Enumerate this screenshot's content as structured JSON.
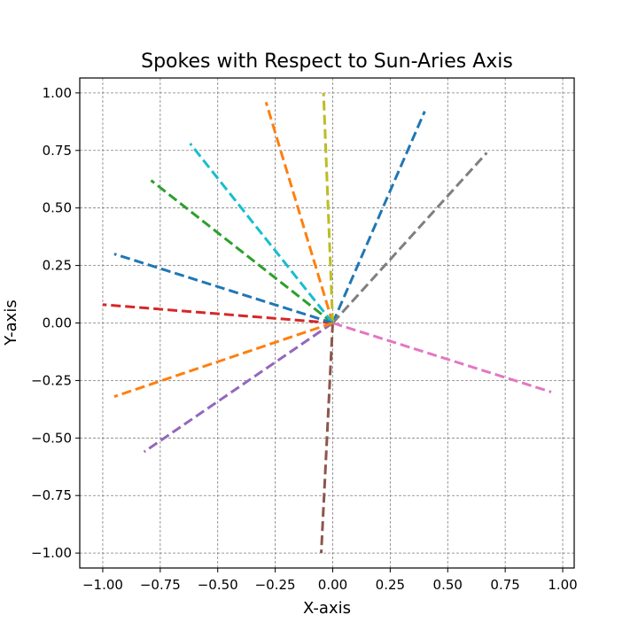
{
  "chart_data": {
    "type": "line",
    "title": "Spokes with Respect to Sun-Aries Axis",
    "xlabel": "X-axis",
    "ylabel": "Y-axis",
    "xlim": [
      -1.1,
      1.05
    ],
    "ylim": [
      -1.065,
      1.065
    ],
    "xticks": [
      -1.0,
      -0.75,
      -0.5,
      -0.25,
      0.0,
      0.25,
      0.5,
      0.75,
      1.0
    ],
    "xtick_labels": [
      "−1.00",
      "−0.75",
      "−0.50",
      "−0.25",
      "0.00",
      "0.25",
      "0.50",
      "0.75",
      "1.00"
    ],
    "yticks": [
      -1.0,
      -0.75,
      -0.5,
      -0.25,
      0.0,
      0.25,
      0.5,
      0.75,
      1.0
    ],
    "ytick_labels": [
      "−1.00",
      "−0.75",
      "−0.50",
      "−0.25",
      "0.00",
      "0.25",
      "0.50",
      "0.75",
      "1.00"
    ],
    "grid": true,
    "origin": [
      0,
      0
    ],
    "spokes": [
      {
        "end": [
          0.4,
          0.92
        ],
        "color": "#1f77b4"
      },
      {
        "end": [
          -0.29,
          0.96
        ],
        "color": "#ff7f0e"
      },
      {
        "end": [
          -0.79,
          0.62
        ],
        "color": "#2ca02c"
      },
      {
        "end": [
          -1.0,
          0.08
        ],
        "color": "#d62728"
      },
      {
        "end": [
          -0.82,
          -0.56
        ],
        "color": "#9467bd"
      },
      {
        "end": [
          -0.05,
          -1.0
        ],
        "color": "#8c564b"
      },
      {
        "end": [
          0.95,
          -0.3
        ],
        "color": "#e377c2"
      },
      {
        "end": [
          0.67,
          0.74
        ],
        "color": "#7f7f7f"
      },
      {
        "end": [
          -0.04,
          1.0
        ],
        "color": "#bcbd22"
      },
      {
        "end": [
          -0.62,
          0.78
        ],
        "color": "#17becf"
      },
      {
        "end": [
          -0.95,
          0.3
        ],
        "color": "#1f77b4"
      },
      {
        "end": [
          -0.95,
          -0.32
        ],
        "color": "#ff7f0e"
      }
    ]
  }
}
